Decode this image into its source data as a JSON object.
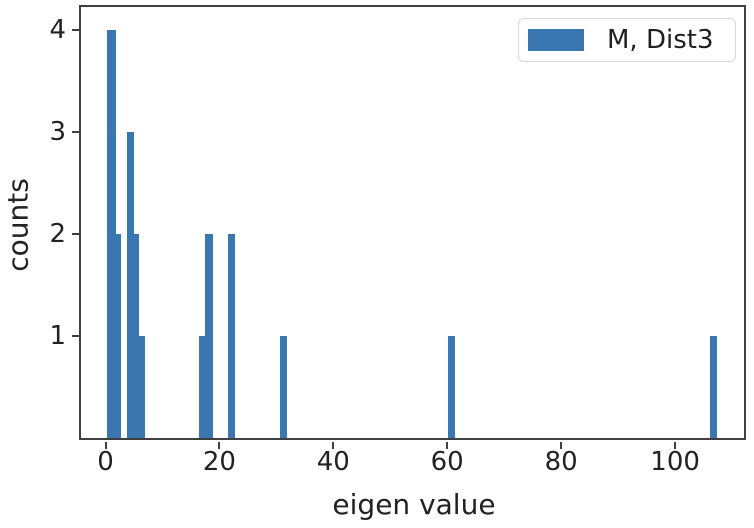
{
  "figure": {
    "background": "#ffffff"
  },
  "colors": {
    "bar": "#3a76af",
    "axis": "#404040",
    "text": "#222222",
    "legend_border": "#d8d8d8"
  },
  "chart_data": {
    "type": "bar",
    "subtype": "histogram",
    "title": "",
    "xlabel": "eigen value",
    "ylabel": "counts",
    "xlim": [
      -4.3,
      112.1
    ],
    "ylim": [
      0,
      4.23
    ],
    "xticks": [
      0,
      20,
      40,
      60,
      80,
      100
    ],
    "yticks": [
      1,
      2,
      3,
      4
    ],
    "grid": false,
    "legend": {
      "position": "upper-right",
      "entries": [
        {
          "label": "M, Dist3",
          "color": "#3a76af"
        }
      ]
    },
    "bars": [
      {
        "x0": 0.2,
        "x1": 1.8,
        "count": 4
      },
      {
        "x0": 1.8,
        "x1": 2.7,
        "count": 2
      },
      {
        "x0": 3.8,
        "x1": 4.95,
        "count": 3
      },
      {
        "x0": 4.95,
        "x1": 5.85,
        "count": 2
      },
      {
        "x0": 5.85,
        "x1": 6.9,
        "count": 1
      },
      {
        "x0": 16.4,
        "x1": 17.4,
        "count": 1
      },
      {
        "x0": 17.4,
        "x1": 18.9,
        "count": 2
      },
      {
        "x0": 21.5,
        "x1": 22.8,
        "count": 2
      },
      {
        "x0": 30.7,
        "x1": 31.8,
        "count": 1
      },
      {
        "x0": 60.1,
        "x1": 61.3,
        "count": 1
      },
      {
        "x0": 106.1,
        "x1": 107.3,
        "count": 1
      }
    ]
  }
}
